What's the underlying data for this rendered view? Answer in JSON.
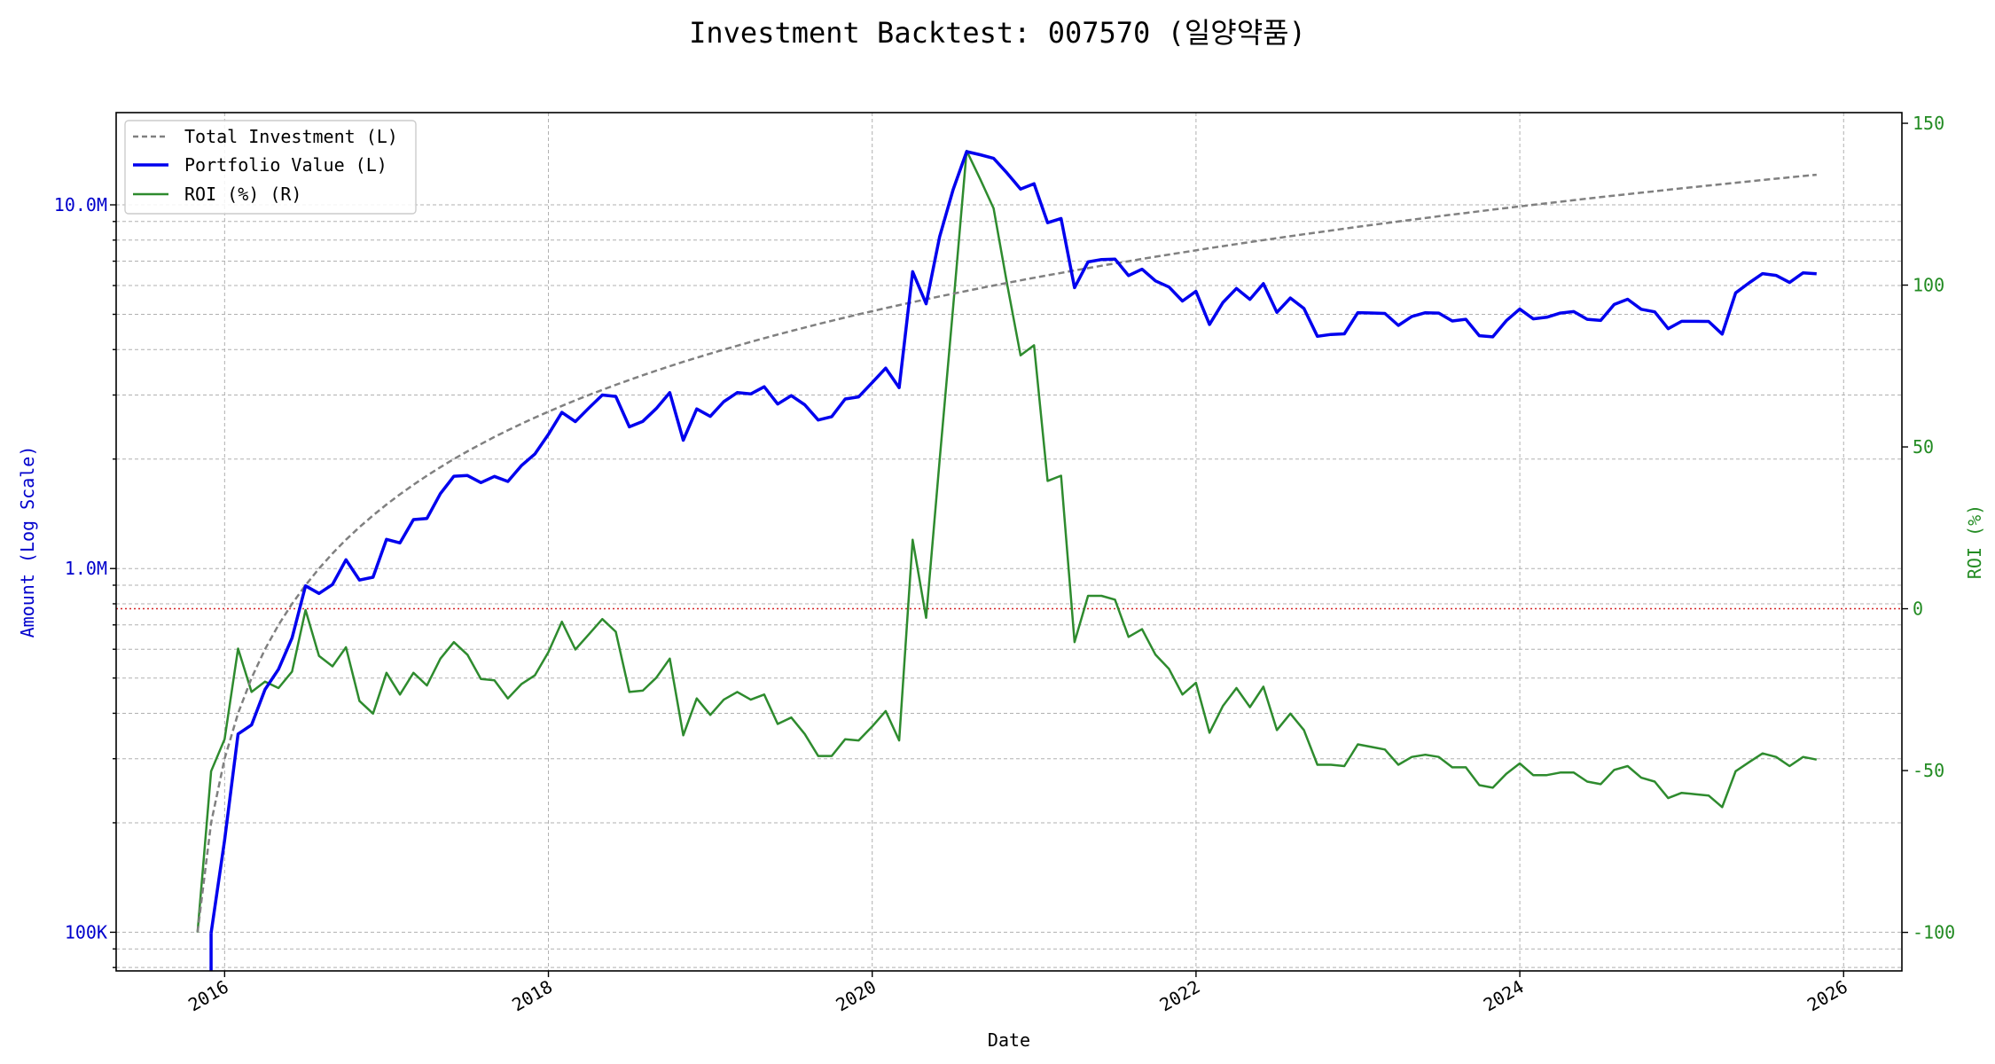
{
  "chart_data": {
    "type": "line",
    "title": "Investment Backtest: 007570 (일양약품)",
    "xlabel": "Date",
    "ylabel_left": "Amount (Log Scale)",
    "ylabel_right": "ROI (%)",
    "xlim": [
      2015.33,
      2026.36
    ],
    "ylim_left": [
      78300,
      17930000
    ],
    "ylim_right": [
      -111.9,
      153.3
    ],
    "y_scale_left": "log",
    "grid": true,
    "legend_placement": "top-left",
    "x_ticks": [
      "2016",
      "2018",
      "2020",
      "2022",
      "2024",
      "2026"
    ],
    "x_tick_values": [
      2016,
      2018,
      2020,
      2022,
      2024,
      2026
    ],
    "y_ticks_left": [
      {
        "value": 10000000,
        "label": "10.0M"
      },
      {
        "value": 1000000,
        "label": "1.0M"
      },
      {
        "value": 100000,
        "label": "100K"
      }
    ],
    "y_ticks_right": [
      {
        "value": 150,
        "label": "150"
      },
      {
        "value": 100,
        "label": "100"
      },
      {
        "value": 50,
        "label": "50"
      },
      {
        "value": 0,
        "label": "0"
      },
      {
        "value": -50,
        "label": "-50"
      },
      {
        "value": -100,
        "label": "-100"
      }
    ],
    "reference_line": {
      "axis": "right",
      "value": 0,
      "color": "#d62728"
    },
    "start_date": 2015.833,
    "step_months": 1,
    "investment": {
      "start": 100000,
      "monthly": 100000
    },
    "series": [
      {
        "name": "Total Investment (L)",
        "axis": "left",
        "color": "#808080",
        "style": "dashed",
        "derived": "cumulative investment"
      },
      {
        "name": "Portfolio Value (L)",
        "axis": "left",
        "color": "#0000ee",
        "style": "solid",
        "derived": "investment * (1 + ROI/100)"
      },
      {
        "name": "ROI (%) (R)",
        "axis": "right",
        "color": "#2e8b2e",
        "style": "solid",
        "values": [
          -100,
          -50.2,
          -40.3,
          -12.3,
          -25.7,
          -22.5,
          -24.5,
          -19.4,
          -0.4,
          -14.6,
          -17.8,
          -11.9,
          -28.5,
          -32.4,
          -19.8,
          -26.5,
          -19.8,
          -23.7,
          -15.4,
          -10.3,
          -14.2,
          -21.7,
          -22.1,
          -27.7,
          -23.3,
          -20.6,
          -13.4,
          -4.0,
          -12.6,
          -7.9,
          -3.2,
          -7.1,
          -25.7,
          -25.3,
          -21.3,
          -15.4,
          -39.1,
          -27.7,
          -32.8,
          -28.1,
          -25.7,
          -28.1,
          -26.5,
          -35.6,
          -33.6,
          -38.7,
          -45.5,
          -45.5,
          -40.3,
          -40.7,
          -36.4,
          -31.6,
          -40.7,
          21.3,
          -2.8,
          45.8,
          93.0,
          141.5,
          132.8,
          123.7,
          100.4,
          78.3,
          81.4,
          39.5,
          41.1,
          -10.3,
          4.0,
          4.0,
          2.8,
          -8.7,
          -6.3,
          -14.2,
          -18.6,
          -26.5,
          -22.9,
          -38.3,
          -30.0,
          -24.5,
          -30.4,
          -24.1,
          -37.5,
          -32.4,
          -37.5,
          -48.2,
          -48.2,
          -48.6,
          -41.9,
          -42.7,
          -43.5,
          -48.2,
          -45.8,
          -45.1,
          -45.8,
          -49.0,
          -49.0,
          -54.5,
          -55.3,
          -51.0,
          -47.8,
          -51.4,
          -51.4,
          -50.6,
          -50.6,
          -53.4,
          -54.2,
          -49.8,
          -48.6,
          -52.2,
          -53.4,
          -58.5,
          -56.9,
          -57.3,
          -57.7,
          -61.3,
          -50.2,
          -47.4,
          -44.7,
          -45.8,
          -48.6,
          -45.8,
          -46.6
        ]
      }
    ],
    "axis_colors": {
      "left": "#0000cc",
      "right": "#228b22"
    }
  }
}
